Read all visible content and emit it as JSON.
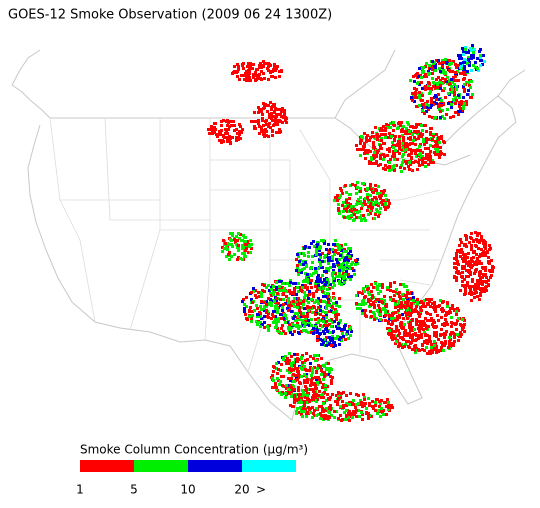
{
  "title": "GOES-12 Smoke Observation (2009 06 24  1300Z)",
  "legend": {
    "title": "Smoke Column Concentration (μg/m³)",
    "colors": [
      "#ff0000",
      "#00ee00",
      "#0000dd",
      "#00ffff"
    ],
    "ticks": [
      1,
      5,
      10,
      20
    ],
    "overflow_label": ">"
  }
}
